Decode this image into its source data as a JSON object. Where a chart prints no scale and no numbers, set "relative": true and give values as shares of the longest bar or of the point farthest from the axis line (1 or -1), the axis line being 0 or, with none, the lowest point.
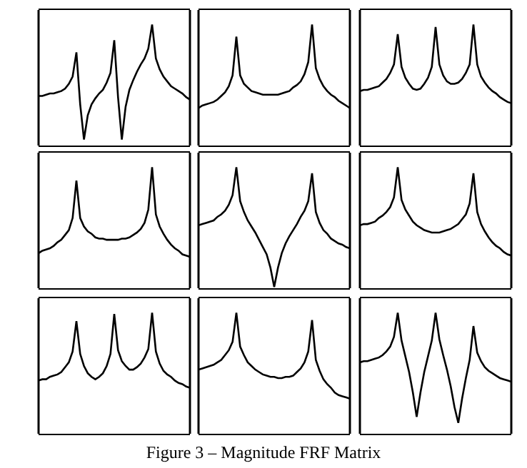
{
  "chart_data": [
    {
      "type": "line",
      "relative": true,
      "color": "#000000",
      "grid": false,
      "categories": [
        null,
        null,
        null,
        null,
        null,
        null,
        null,
        null,
        null,
        null,
        null,
        null,
        null,
        null,
        null,
        null,
        null,
        null,
        null,
        null,
        null,
        null,
        null,
        null,
        null,
        null,
        null,
        null,
        null,
        null,
        null,
        null,
        null,
        null,
        null,
        null,
        null,
        null,
        null,
        null,
        null
      ],
      "values": [
        0.41,
        0.41,
        0.42,
        0.43,
        0.43,
        0.44,
        0.45,
        0.47,
        0.51,
        0.57,
        0.77,
        0.34,
        0.05,
        0.25,
        0.34,
        0.39,
        0.43,
        0.46,
        0.52,
        0.6,
        0.87,
        0.4,
        0.05,
        0.32,
        0.46,
        0.54,
        0.61,
        0.67,
        0.72,
        0.8,
        1,
        0.72,
        0.63,
        0.57,
        0.53,
        0.49,
        0.47,
        0.45,
        0.43,
        0.4,
        0.38
      ]
    },
    {
      "type": "line",
      "relative": true,
      "color": "#000000",
      "grid": false,
      "categories": [
        null,
        null,
        null,
        null,
        null,
        null,
        null,
        null,
        null,
        null,
        null,
        null,
        null,
        null,
        null,
        null,
        null,
        null,
        null,
        null,
        null,
        null,
        null,
        null,
        null,
        null,
        null,
        null,
        null,
        null,
        null,
        null,
        null,
        null,
        null,
        null,
        null,
        null,
        null,
        null,
        null
      ],
      "values": [
        0.31,
        0.33,
        0.34,
        0.35,
        0.36,
        0.38,
        0.41,
        0.44,
        0.49,
        0.58,
        0.9,
        0.58,
        0.51,
        0.48,
        0.45,
        0.44,
        0.43,
        0.42,
        0.42,
        0.42,
        0.42,
        0.42,
        0.43,
        0.44,
        0.45,
        0.48,
        0.5,
        0.53,
        0.59,
        0.69,
        1,
        0.64,
        0.55,
        0.49,
        0.45,
        0.42,
        0.4,
        0.37,
        0.35,
        0.33,
        0.31
      ]
    },
    {
      "type": "line",
      "relative": true,
      "color": "#000000",
      "grid": false,
      "categories": [
        null,
        null,
        null,
        null,
        null,
        null,
        null,
        null,
        null,
        null,
        null,
        null,
        null,
        null,
        null,
        null,
        null,
        null,
        null,
        null,
        null,
        null,
        null,
        null,
        null,
        null,
        null,
        null,
        null,
        null,
        null,
        null,
        null,
        null,
        null,
        null,
        null,
        null,
        null,
        null,
        null
      ],
      "values": [
        0.45,
        0.46,
        0.46,
        0.47,
        0.48,
        0.49,
        0.52,
        0.55,
        0.6,
        0.67,
        0.92,
        0.65,
        0.56,
        0.51,
        0.47,
        0.46,
        0.47,
        0.51,
        0.56,
        0.65,
        0.98,
        0.67,
        0.58,
        0.53,
        0.51,
        0.51,
        0.52,
        0.55,
        0.6,
        0.67,
        1,
        0.67,
        0.57,
        0.52,
        0.48,
        0.45,
        0.43,
        0.4,
        0.38,
        0.36,
        0.35
      ]
    },
    {
      "type": "line",
      "relative": true,
      "color": "#000000",
      "grid": false,
      "categories": [
        null,
        null,
        null,
        null,
        null,
        null,
        null,
        null,
        null,
        null,
        null,
        null,
        null,
        null,
        null,
        null,
        null,
        null,
        null,
        null,
        null,
        null,
        null,
        null,
        null,
        null,
        null,
        null,
        null,
        null,
        null,
        null,
        null,
        null,
        null,
        null,
        null,
        null,
        null,
        null,
        null
      ],
      "values": [
        0.29,
        0.31,
        0.32,
        0.33,
        0.35,
        0.38,
        0.4,
        0.44,
        0.48,
        0.58,
        0.89,
        0.58,
        0.51,
        0.47,
        0.45,
        0.42,
        0.41,
        0.41,
        0.4,
        0.4,
        0.4,
        0.4,
        0.41,
        0.41,
        0.42,
        0.44,
        0.46,
        0.49,
        0.54,
        0.65,
        1,
        0.61,
        0.51,
        0.45,
        0.4,
        0.36,
        0.33,
        0.31,
        0.28,
        0.27,
        0.26
      ]
    },
    {
      "type": "line",
      "relative": true,
      "color": "#000000",
      "grid": false,
      "categories": [
        null,
        null,
        null,
        null,
        null,
        null,
        null,
        null,
        null,
        null,
        null,
        null,
        null,
        null,
        null,
        null,
        null,
        null,
        null,
        null,
        null,
        null,
        null,
        null,
        null,
        null,
        null,
        null,
        null,
        null,
        null,
        null,
        null,
        null,
        null,
        null,
        null,
        null,
        null,
        null,
        null
      ],
      "values": [
        0.52,
        0.53,
        0.54,
        0.55,
        0.56,
        0.59,
        0.61,
        0.64,
        0.69,
        0.77,
        1,
        0.72,
        0.63,
        0.56,
        0.51,
        0.46,
        0.4,
        0.34,
        0.28,
        0.17,
        0.01,
        0.17,
        0.29,
        0.37,
        0.43,
        0.48,
        0.53,
        0.59,
        0.64,
        0.72,
        0.95,
        0.63,
        0.54,
        0.48,
        0.45,
        0.41,
        0.39,
        0.37,
        0.36,
        0.34,
        0.33
      ]
    },
    {
      "type": "line",
      "relative": true,
      "color": "#000000",
      "grid": false,
      "categories": [
        null,
        null,
        null,
        null,
        null,
        null,
        null,
        null,
        null,
        null,
        null,
        null,
        null,
        null,
        null,
        null,
        null,
        null,
        null,
        null,
        null,
        null,
        null,
        null,
        null,
        null,
        null,
        null,
        null,
        null,
        null,
        null,
        null,
        null,
        null,
        null,
        null,
        null,
        null,
        null,
        null
      ],
      "values": [
        0.52,
        0.53,
        0.53,
        0.54,
        0.55,
        0.58,
        0.6,
        0.63,
        0.67,
        0.75,
        1,
        0.73,
        0.65,
        0.6,
        0.55,
        0.52,
        0.5,
        0.48,
        0.47,
        0.46,
        0.46,
        0.46,
        0.47,
        0.48,
        0.49,
        0.51,
        0.53,
        0.57,
        0.61,
        0.7,
        0.95,
        0.63,
        0.53,
        0.47,
        0.42,
        0.38,
        0.35,
        0.33,
        0.3,
        0.28,
        0.27
      ]
    },
    {
      "type": "line",
      "relative": true,
      "color": "#000000",
      "grid": false,
      "categories": [
        null,
        null,
        null,
        null,
        null,
        null,
        null,
        null,
        null,
        null,
        null,
        null,
        null,
        null,
        null,
        null,
        null,
        null,
        null,
        null,
        null,
        null,
        null,
        null,
        null,
        null,
        null,
        null,
        null,
        null,
        null,
        null,
        null,
        null,
        null,
        null,
        null,
        null,
        null,
        null,
        null
      ],
      "values": [
        0.44,
        0.45,
        0.45,
        0.47,
        0.48,
        0.49,
        0.51,
        0.55,
        0.59,
        0.68,
        0.93,
        0.66,
        0.56,
        0.5,
        0.47,
        0.45,
        0.47,
        0.5,
        0.56,
        0.66,
        0.99,
        0.69,
        0.6,
        0.56,
        0.53,
        0.53,
        0.55,
        0.58,
        0.63,
        0.7,
        1,
        0.68,
        0.58,
        0.52,
        0.49,
        0.47,
        0.44,
        0.42,
        0.41,
        0.39,
        0.38
      ]
    },
    {
      "type": "line",
      "relative": true,
      "color": "#000000",
      "grid": false,
      "annotations": [
        "Figure 3 – Magnitude FRF Matrix"
      ],
      "categories": [
        null,
        null,
        null,
        null,
        null,
        null,
        null,
        null,
        null,
        null,
        null,
        null,
        null,
        null,
        null,
        null,
        null,
        null,
        null,
        null,
        null,
        null,
        null,
        null,
        null,
        null,
        null,
        null,
        null,
        null,
        null,
        null,
        null,
        null,
        null,
        null,
        null,
        null,
        null,
        null,
        null
      ],
      "values": [
        0.53,
        0.54,
        0.55,
        0.56,
        0.57,
        0.59,
        0.61,
        0.65,
        0.69,
        0.76,
        1,
        0.72,
        0.65,
        0.59,
        0.56,
        0.53,
        0.51,
        0.49,
        0.48,
        0.47,
        0.47,
        0.46,
        0.46,
        0.47,
        0.47,
        0.48,
        0.51,
        0.54,
        0.59,
        0.68,
        0.94,
        0.61,
        0.52,
        0.45,
        0.41,
        0.38,
        0.34,
        0.32,
        0.31,
        0.3,
        0.29
      ]
    },
    {
      "type": "line",
      "relative": true,
      "color": "#000000",
      "grid": false,
      "categories": [
        null,
        null,
        null,
        null,
        null,
        null,
        null,
        null,
        null,
        null,
        null,
        null,
        null,
        null,
        null,
        null,
        null,
        null,
        null,
        null,
        null,
        null,
        null,
        null,
        null,
        null,
        null,
        null,
        null,
        null,
        null,
        null,
        null,
        null,
        null,
        null,
        null,
        null,
        null,
        null,
        null
      ],
      "values": [
        0.59,
        0.6,
        0.6,
        0.61,
        0.62,
        0.63,
        0.65,
        0.68,
        0.72,
        0.8,
        1,
        0.77,
        0.64,
        0.51,
        0.34,
        0.14,
        0.34,
        0.51,
        0.64,
        0.77,
        1,
        0.78,
        0.65,
        0.53,
        0.39,
        0.22,
        0.09,
        0.29,
        0.46,
        0.61,
        0.89,
        0.67,
        0.6,
        0.55,
        0.52,
        0.5,
        0.48,
        0.46,
        0.45,
        0.44,
        0.43
      ]
    }
  ]
}
